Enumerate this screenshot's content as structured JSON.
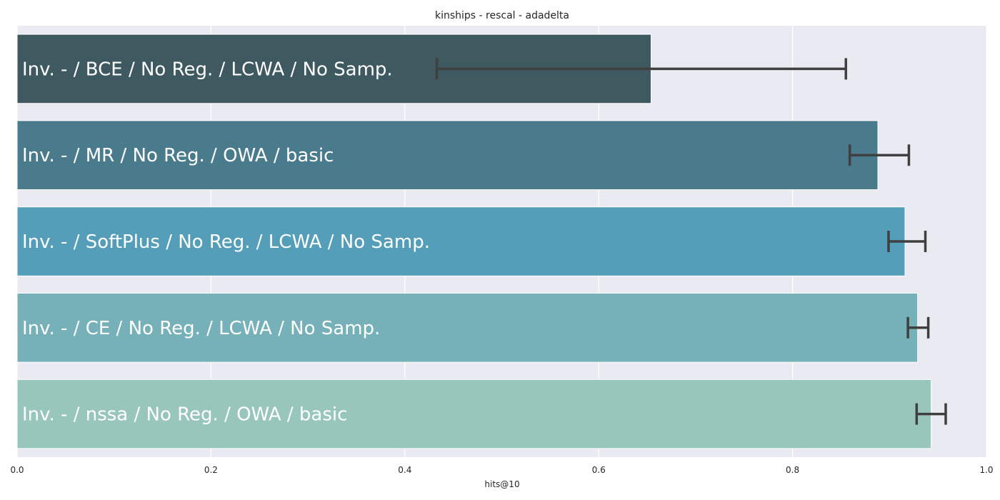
{
  "chart_data": {
    "type": "bar",
    "orientation": "horizontal",
    "title": "kinships - rescal - adadelta",
    "xlabel": "hits@10",
    "ylabel": "",
    "xlim": [
      0,
      1.0
    ],
    "xticks": [
      0.0,
      0.2,
      0.4,
      0.6,
      0.8,
      1.0
    ],
    "xtick_labels": [
      "0.0",
      "0.2",
      "0.4",
      "0.6",
      "0.8",
      "1.0"
    ],
    "grid": true,
    "categories": [
      "Inv. - / BCE / No Reg. / LCWA / No Samp.",
      "Inv. - / MR / No Reg. / OWA / basic",
      "Inv. - / SoftPlus / No Reg. / LCWA / No Samp.",
      "Inv. - / CE / No Reg. / LCWA / No Samp.",
      "Inv. - / nssa / No Reg. / OWA / basic"
    ],
    "values": [
      0.654,
      0.888,
      0.916,
      0.929,
      0.943
    ],
    "error_low": [
      0.433,
      0.859,
      0.899,
      0.919,
      0.928
    ],
    "error_high": [
      0.855,
      0.92,
      0.937,
      0.94,
      0.958
    ],
    "colors": [
      "#3f5961",
      "#4a7b8c",
      "#549eb9",
      "#76b0b9",
      "#99c6ba"
    ],
    "background": "#eaeaf2",
    "error_color": "#3f3f3f"
  }
}
